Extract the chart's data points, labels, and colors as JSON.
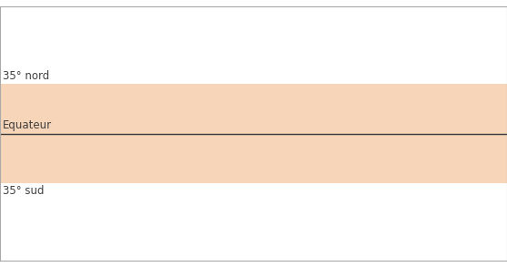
{
  "figsize": [
    5.57,
    2.93
  ],
  "dpi": 100,
  "background_color": "#ffffff",
  "map_land_color_normal": "#b8b8b8",
  "map_land_edge_color": "#ffffff",
  "map_land_edge_width": 0.3,
  "map_ocean_color": "#ffffff",
  "band_color": "#f5c8a0",
  "band_alpha": 0.75,
  "equator_color": "#3a3a3a",
  "equator_linewidth": 1.0,
  "lat_35n": 35,
  "lat_equator": 0,
  "lat_35s": -35,
  "label_35n": "35° nord",
  "label_equateur": "Equateur",
  "label_35s": "35° sud",
  "label_color": "#404040",
  "label_fontsize": 8.5,
  "border_color": "#aaaaaa",
  "border_linewidth": 0.8,
  "xlim": [
    -180,
    180
  ],
  "ylim": [
    -90,
    90
  ]
}
